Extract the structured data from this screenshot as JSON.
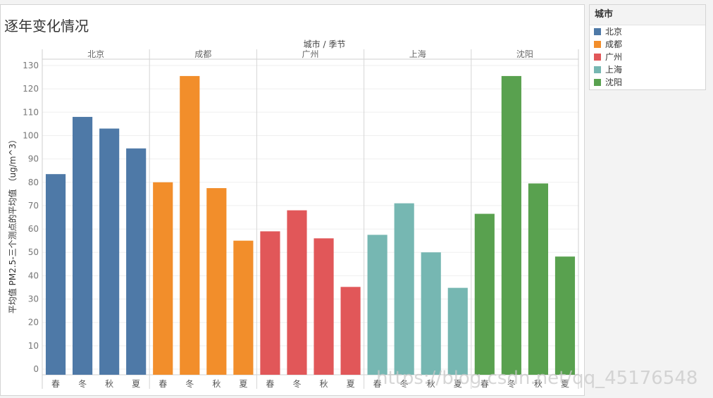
{
  "title": "逐年变化情况",
  "legend": {
    "title": "城市",
    "items": [
      {
        "label": "北京",
        "color": "#4e79a7"
      },
      {
        "label": "成都",
        "color": "#f28e2b"
      },
      {
        "label": "广州",
        "color": "#e15759"
      },
      {
        "label": "上海",
        "color": "#76b7b2"
      },
      {
        "label": "沈阳",
        "color": "#59a14f"
      }
    ]
  },
  "watermark": "https://blog.csdn.net/qq_45176548",
  "chart_data": {
    "type": "bar",
    "header": "城市 / 季节",
    "ylabel": "平均值 PM2.5-三个测点的平均值 （ug/m^3）",
    "ylim": [
      0,
      130
    ],
    "yticks": [
      0,
      10,
      20,
      30,
      40,
      50,
      60,
      70,
      80,
      90,
      100,
      110,
      120,
      130
    ],
    "categories": [
      "春",
      "冬",
      "秋",
      "夏"
    ],
    "grid": true,
    "series": [
      {
        "name": "北京",
        "color": "#4e79a7",
        "values": [
          83.5,
          108,
          103,
          94.5
        ]
      },
      {
        "name": "成都",
        "color": "#f28e2b",
        "values": [
          80,
          125.5,
          77.5,
          55
        ]
      },
      {
        "name": "广州",
        "color": "#e15759",
        "values": [
          59,
          68,
          56,
          35.2
        ]
      },
      {
        "name": "上海",
        "color": "#76b7b2",
        "values": [
          57.5,
          71,
          50,
          34.8
        ]
      },
      {
        "name": "沈阳",
        "color": "#59a14f",
        "values": [
          66.5,
          125.5,
          79.5,
          48.2
        ]
      }
    ]
  }
}
